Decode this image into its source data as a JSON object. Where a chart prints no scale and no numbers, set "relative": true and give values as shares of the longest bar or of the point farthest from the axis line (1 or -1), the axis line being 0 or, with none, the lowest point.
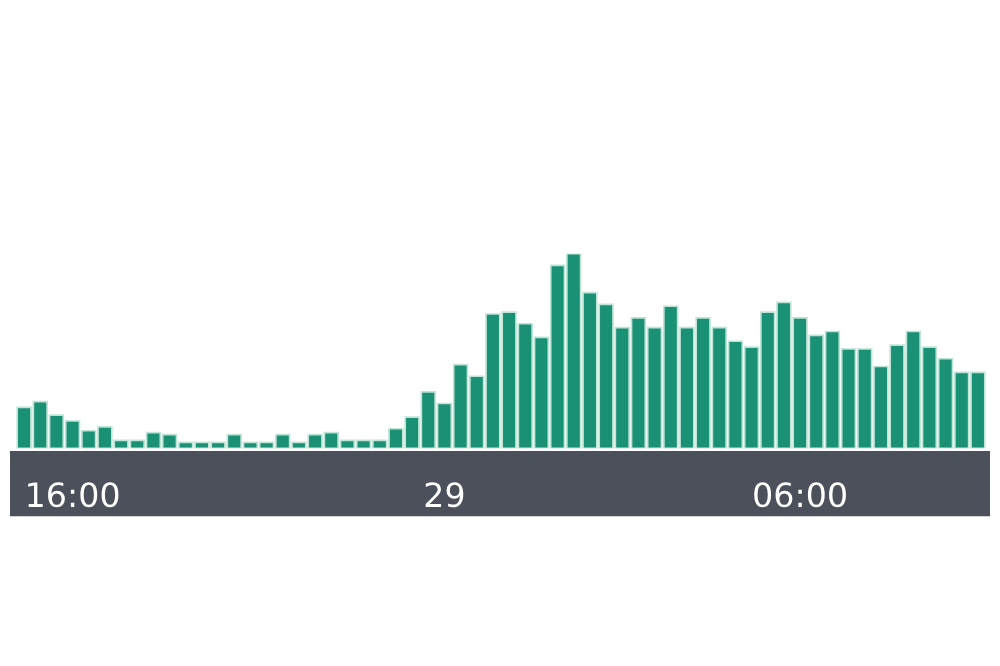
{
  "chart_data": {
    "type": "bar",
    "relative": true,
    "color": "#1a9175",
    "grid": false,
    "legend": false,
    "categories": [
      null,
      null,
      null,
      "16:00",
      null,
      null,
      null,
      null,
      null,
      null,
      null,
      null,
      null,
      null,
      null,
      null,
      null,
      null,
      null,
      null,
      null,
      null,
      null,
      null,
      null,
      null,
      "29",
      null,
      null,
      null,
      null,
      null,
      null,
      null,
      null,
      null,
      null,
      null,
      null,
      null,
      null,
      null,
      null,
      null,
      null,
      null,
      null,
      null,
      "06:00",
      null,
      null,
      null,
      null,
      null,
      null,
      null,
      null,
      null,
      null,
      null
    ],
    "values": [
      0.21,
      0.24,
      0.17,
      0.14,
      0.09,
      0.11,
      0.04,
      0.04,
      0.08,
      0.07,
      0.03,
      0.03,
      0.03,
      0.07,
      0.03,
      0.03,
      0.07,
      0.03,
      0.07,
      0.08,
      0.04,
      0.04,
      0.04,
      0.1,
      0.16,
      0.29,
      0.23,
      0.43,
      0.37,
      0.69,
      0.7,
      0.64,
      0.57,
      0.94,
      1.0,
      0.8,
      0.74,
      0.62,
      0.67,
      0.62,
      0.73,
      0.62,
      0.67,
      0.62,
      0.55,
      0.52,
      0.7,
      0.75,
      0.67,
      0.58,
      0.6,
      0.51,
      0.51,
      0.42,
      0.53,
      0.6,
      0.52,
      0.46,
      0.39,
      0.39
    ]
  }
}
